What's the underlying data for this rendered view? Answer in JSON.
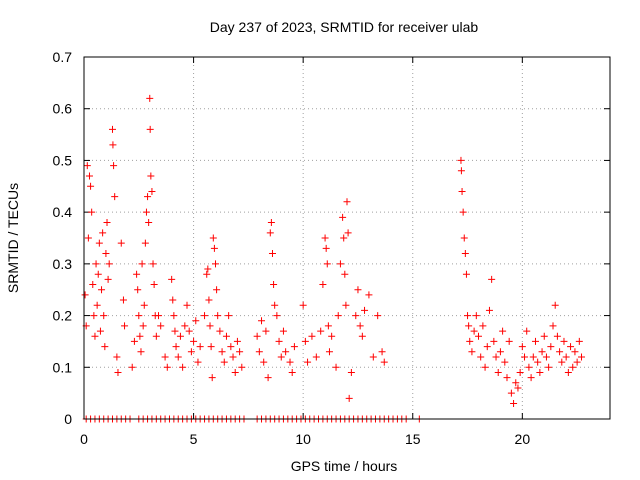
{
  "chart_data": {
    "type": "scatter",
    "title": "Day 237 of 2023, SRMTID for receiver ulab",
    "xlabel": "GPS time / hours",
    "ylabel": "SRMTID / TECUs",
    "xlim": [
      0,
      24
    ],
    "ylim": [
      0,
      0.7
    ],
    "xticks": [
      0,
      5,
      10,
      15,
      20
    ],
    "xtick_labels": [
      "0",
      "5",
      "10",
      "15",
      "20"
    ],
    "yticks": [
      0,
      0.1,
      0.2,
      0.3,
      0.4,
      0.5,
      0.6,
      0.7
    ],
    "ytick_labels": [
      "0",
      "0.1",
      "0.2",
      "0.3",
      "0.4",
      "0.5",
      "0.6",
      "0.7"
    ],
    "grid": true,
    "marker": "plus",
    "color": "#ff0000",
    "series": [
      {
        "name": "SRMTID",
        "points": [
          [
            0.05,
            0.24
          ],
          [
            0.1,
            0.18
          ],
          [
            0.15,
            0.49
          ],
          [
            0.2,
            0.35
          ],
          [
            0.25,
            0.47
          ],
          [
            0.3,
            0.45
          ],
          [
            0.35,
            0.4
          ],
          [
            0.4,
            0.26
          ],
          [
            0.45,
            0.2
          ],
          [
            0.5,
            0.16
          ],
          [
            0.55,
            0.3
          ],
          [
            0.6,
            0.22
          ],
          [
            0.65,
            0.28
          ],
          [
            0.7,
            0.34
          ],
          [
            0.75,
            0.17
          ],
          [
            0.8,
            0.25
          ],
          [
            0.85,
            0.36
          ],
          [
            0.9,
            0.2
          ],
          [
            0.95,
            0.14
          ],
          [
            1.0,
            0.32
          ],
          [
            1.05,
            0.38
          ],
          [
            1.1,
            0.27
          ],
          [
            1.15,
            0.3
          ],
          [
            1.3,
            0.56
          ],
          [
            1.32,
            0.53
          ],
          [
            1.35,
            0.49
          ],
          [
            1.4,
            0.43
          ],
          [
            1.5,
            0.12
          ],
          [
            1.55,
            0.09
          ],
          [
            1.7,
            0.34
          ],
          [
            1.8,
            0.23
          ],
          [
            1.85,
            0.18
          ],
          [
            2.2,
            0.1
          ],
          [
            2.3,
            0.15
          ],
          [
            2.4,
            0.28
          ],
          [
            2.45,
            0.25
          ],
          [
            2.5,
            0.2
          ],
          [
            2.55,
            0.16
          ],
          [
            2.6,
            0.13
          ],
          [
            2.65,
            0.3
          ],
          [
            2.7,
            0.18
          ],
          [
            2.75,
            0.22
          ],
          [
            2.8,
            0.34
          ],
          [
            2.85,
            0.4
          ],
          [
            2.9,
            0.43
          ],
          [
            2.95,
            0.38
          ],
          [
            3.0,
            0.62
          ],
          [
            3.02,
            0.56
          ],
          [
            3.05,
            0.47
          ],
          [
            3.1,
            0.44
          ],
          [
            3.15,
            0.3
          ],
          [
            3.2,
            0.26
          ],
          [
            3.25,
            0.2
          ],
          [
            3.3,
            0.16
          ],
          [
            3.4,
            0.2
          ],
          [
            3.5,
            0.18
          ],
          [
            3.7,
            0.12
          ],
          [
            3.8,
            0.1
          ],
          [
            4.0,
            0.27
          ],
          [
            4.05,
            0.23
          ],
          [
            4.1,
            0.2
          ],
          [
            4.15,
            0.17
          ],
          [
            4.2,
            0.14
          ],
          [
            4.3,
            0.12
          ],
          [
            4.4,
            0.16
          ],
          [
            4.5,
            0.1
          ],
          [
            4.6,
            0.18
          ],
          [
            4.7,
            0.22
          ],
          [
            4.8,
            0.17
          ],
          [
            4.9,
            0.13
          ],
          [
            5.0,
            0.15
          ],
          [
            5.1,
            0.19
          ],
          [
            5.2,
            0.11
          ],
          [
            5.3,
            0.14
          ],
          [
            5.5,
            0.2
          ],
          [
            5.6,
            0.28
          ],
          [
            5.65,
            0.29
          ],
          [
            5.7,
            0.23
          ],
          [
            5.75,
            0.18
          ],
          [
            5.8,
            0.14
          ],
          [
            5.85,
            0.08
          ],
          [
            5.9,
            0.35
          ],
          [
            5.95,
            0.33
          ],
          [
            6.0,
            0.3
          ],
          [
            6.05,
            0.25
          ],
          [
            6.1,
            0.2
          ],
          [
            6.2,
            0.17
          ],
          [
            6.3,
            0.13
          ],
          [
            6.4,
            0.11
          ],
          [
            6.5,
            0.16
          ],
          [
            6.6,
            0.2
          ],
          [
            6.7,
            0.14
          ],
          [
            6.8,
            0.12
          ],
          [
            6.9,
            0.09
          ],
          [
            7.0,
            0.15
          ],
          [
            7.1,
            0.13
          ],
          [
            7.2,
            0.1
          ],
          [
            7.9,
            0.16
          ],
          [
            8.0,
            0.13
          ],
          [
            8.1,
            0.19
          ],
          [
            8.2,
            0.11
          ],
          [
            8.3,
            0.17
          ],
          [
            8.4,
            0.08
          ],
          [
            8.5,
            0.36
          ],
          [
            8.55,
            0.38
          ],
          [
            8.6,
            0.32
          ],
          [
            8.65,
            0.26
          ],
          [
            8.7,
            0.22
          ],
          [
            8.8,
            0.2
          ],
          [
            8.9,
            0.15
          ],
          [
            9.0,
            0.12
          ],
          [
            9.1,
            0.17
          ],
          [
            9.2,
            0.13
          ],
          [
            9.4,
            0.11
          ],
          [
            9.5,
            0.09
          ],
          [
            9.6,
            0.14
          ],
          [
            10.0,
            0.22
          ],
          [
            10.1,
            0.15
          ],
          [
            10.2,
            0.11
          ],
          [
            10.4,
            0.16
          ],
          [
            10.6,
            0.12
          ],
          [
            10.8,
            0.17
          ],
          [
            10.9,
            0.26
          ],
          [
            11.0,
            0.35
          ],
          [
            11.05,
            0.33
          ],
          [
            11.1,
            0.3
          ],
          [
            11.15,
            0.18
          ],
          [
            11.2,
            0.13
          ],
          [
            11.3,
            0.16
          ],
          [
            11.5,
            0.1
          ],
          [
            11.6,
            0.2
          ],
          [
            11.7,
            0.3
          ],
          [
            11.8,
            0.39
          ],
          [
            11.85,
            0.35
          ],
          [
            11.9,
            0.28
          ],
          [
            11.95,
            0.22
          ],
          [
            12.0,
            0.42
          ],
          [
            12.05,
            0.36
          ],
          [
            12.1,
            0.04
          ],
          [
            12.2,
            0.09
          ],
          [
            12.4,
            0.2
          ],
          [
            12.5,
            0.25
          ],
          [
            12.6,
            0.18
          ],
          [
            12.7,
            0.16
          ],
          [
            12.8,
            0.21
          ],
          [
            13.0,
            0.24
          ],
          [
            13.2,
            0.12
          ],
          [
            13.4,
            0.2
          ],
          [
            13.6,
            0.13
          ],
          [
            13.7,
            0.11
          ],
          [
            17.2,
            0.5
          ],
          [
            17.22,
            0.48
          ],
          [
            17.25,
            0.44
          ],
          [
            17.3,
            0.4
          ],
          [
            17.35,
            0.35
          ],
          [
            17.4,
            0.32
          ],
          [
            17.45,
            0.28
          ],
          [
            17.5,
            0.2
          ],
          [
            17.55,
            0.18
          ],
          [
            17.6,
            0.15
          ],
          [
            17.7,
            0.13
          ],
          [
            17.8,
            0.17
          ],
          [
            17.9,
            0.2
          ],
          [
            18.0,
            0.16
          ],
          [
            18.1,
            0.12
          ],
          [
            18.2,
            0.18
          ],
          [
            18.3,
            0.1
          ],
          [
            18.4,
            0.14
          ],
          [
            18.5,
            0.21
          ],
          [
            18.6,
            0.27
          ],
          [
            18.7,
            0.15
          ],
          [
            18.8,
            0.12
          ],
          [
            18.9,
            0.09
          ],
          [
            19.0,
            0.13
          ],
          [
            19.1,
            0.17
          ],
          [
            19.2,
            0.11
          ],
          [
            19.3,
            0.08
          ],
          [
            19.4,
            0.15
          ],
          [
            19.5,
            0.05
          ],
          [
            19.6,
            0.03
          ],
          [
            19.7,
            0.07
          ],
          [
            19.8,
            0.06
          ],
          [
            19.9,
            0.09
          ],
          [
            20.0,
            0.14
          ],
          [
            20.1,
            0.12
          ],
          [
            20.2,
            0.17
          ],
          [
            20.3,
            0.1
          ],
          [
            20.4,
            0.08
          ],
          [
            20.5,
            0.12
          ],
          [
            20.6,
            0.15
          ],
          [
            20.7,
            0.11
          ],
          [
            20.8,
            0.09
          ],
          [
            20.9,
            0.13
          ],
          [
            21.0,
            0.16
          ],
          [
            21.1,
            0.12
          ],
          [
            21.2,
            0.1
          ],
          [
            21.3,
            0.14
          ],
          [
            21.4,
            0.18
          ],
          [
            21.5,
            0.22
          ],
          [
            21.6,
            0.16
          ],
          [
            21.7,
            0.13
          ],
          [
            21.8,
            0.11
          ],
          [
            21.9,
            0.15
          ],
          [
            22.0,
            0.12
          ],
          [
            22.1,
            0.09
          ],
          [
            22.2,
            0.14
          ],
          [
            22.3,
            0.1
          ],
          [
            22.4,
            0.13
          ],
          [
            22.5,
            0.11
          ],
          [
            22.6,
            0.15
          ],
          [
            22.7,
            0.12
          ]
        ],
        "zero_points_x": [
          0.1,
          0.3,
          0.5,
          0.7,
          0.9,
          1.1,
          1.3,
          1.5,
          1.7,
          1.9,
          2.1,
          2.5,
          2.7,
          2.9,
          3.1,
          3.3,
          3.5,
          3.7,
          3.9,
          4.1,
          4.3,
          4.5,
          4.7,
          4.9,
          5.1,
          5.3,
          5.5,
          5.7,
          5.9,
          6.1,
          6.3,
          6.5,
          6.7,
          6.9,
          7.1,
          7.3,
          7.9,
          8.1,
          8.3,
          8.5,
          8.7,
          8.9,
          9.1,
          9.3,
          9.5,
          9.7,
          9.9,
          10.1,
          10.3,
          10.5,
          10.7,
          10.9,
          11.1,
          11.3,
          11.5,
          11.7,
          11.9,
          12.1,
          12.3,
          12.5,
          12.7,
          12.9,
          13.1,
          13.3,
          13.5,
          13.7,
          13.9,
          14.1,
          14.3,
          14.5,
          14.7,
          15.3
        ]
      }
    ]
  }
}
